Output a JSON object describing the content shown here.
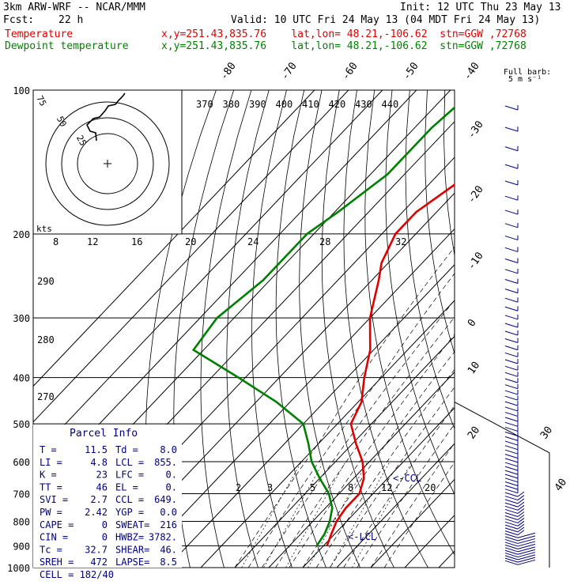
{
  "header": {
    "model": "3km ARW-WRF -- NCAR/MMM",
    "init": "Init: 12 UTC Thu 23 May 13",
    "fcst_label": "Fcst:",
    "fcst_value": "22 h",
    "valid": "Valid: 10 UTC Fri 24 May 13 (04 MDT Fri 24 May 13)",
    "temp_label": "Temperature",
    "temp_info": "x,y=251.43,835.76    lat,lon= 48.21,-106.62  stn=GGW ,72768",
    "dew_label": "Dewpoint temperature",
    "dew_info": "x,y=251.43,835.76    lat,lon= 48.21,-106.62  stn=GGW ,72768",
    "barb_note_1": "Full barb:",
    "barb_note_2": "5 m s⁻¹"
  },
  "chart_data": {
    "type": "line",
    "xlabel": "",
    "ylabel": "",
    "y_log_scale": true,
    "ylim": [
      1000,
      100
    ],
    "pressure_ticks": [
      "100",
      "200",
      "300",
      "400",
      "500",
      "600",
      "700",
      "800",
      "900",
      "1000"
    ],
    "isotherm_labels_top": [
      "-80",
      "-70",
      "-60",
      "-50",
      "-40"
    ],
    "isotherm_labels_right": [
      "-30",
      "-20",
      "-10",
      "0",
      "10",
      "20",
      "30",
      "40"
    ],
    "theta_labels": [
      "370",
      "380",
      "390",
      "400",
      "410",
      "420",
      "430",
      "440"
    ],
    "theta_labels_left": [
      "290",
      "280",
      "270"
    ],
    "mixing_ratio_labels": [
      "2",
      "3",
      "5",
      "8",
      "12",
      "20"
    ],
    "hodograph_speed_labels": [
      "8",
      "12",
      "16",
      "20",
      "24",
      "28",
      "32"
    ],
    "hodograph_ring_labels": [
      "75",
      "50",
      "25"
    ],
    "hodograph_unit": "kts",
    "annotations": [
      "<-CCL",
      "<-LCL"
    ],
    "series": [
      {
        "name": "Temperature",
        "color": "#e00000",
        "points": [
          [
            100,
            -48
          ],
          [
            120,
            -50
          ],
          [
            150,
            -51
          ],
          [
            180,
            -56
          ],
          [
            200,
            -56
          ],
          [
            230,
            -52
          ],
          [
            250,
            -48
          ],
          [
            300,
            -40
          ],
          [
            350,
            -31
          ],
          [
            400,
            -25
          ],
          [
            450,
            -19
          ],
          [
            500,
            -16
          ],
          [
            550,
            -9
          ],
          [
            600,
            -2
          ],
          [
            650,
            3
          ],
          [
            700,
            6
          ],
          [
            750,
            6
          ],
          [
            800,
            7
          ],
          [
            850,
            9
          ],
          [
            900,
            11
          ]
        ]
      },
      {
        "name": "Dewpoint temperature",
        "color": "#008000",
        "points": [
          [
            100,
            -73
          ],
          [
            120,
            -75
          ],
          [
            150,
            -75
          ],
          [
            180,
            -79
          ],
          [
            200,
            -82
          ],
          [
            250,
            -82
          ],
          [
            300,
            -85
          ],
          [
            350,
            -83
          ],
          [
            400,
            -62
          ],
          [
            450,
            -44
          ],
          [
            500,
            -30
          ],
          [
            550,
            -23
          ],
          [
            600,
            -17
          ],
          [
            650,
            -10
          ],
          [
            700,
            -3
          ],
          [
            750,
            2
          ],
          [
            800,
            5
          ],
          [
            850,
            7
          ],
          [
            900,
            8
          ]
        ]
      }
    ]
  },
  "parcel": {
    "title": "Parcel Info",
    "rows": [
      {
        "k1": "T  =",
        "v1": "11.5",
        "k2": "Td =",
        "v2": "8.0"
      },
      {
        "k1": "LI =",
        "v1": "4.8",
        "k2": "LCL =",
        "v2": "855."
      },
      {
        "k1": "K  =",
        "v1": "23",
        "k2": "LFC =",
        "v2": "0."
      },
      {
        "k1": "TT =",
        "v1": "46",
        "k2": "EL  =",
        "v2": "0."
      },
      {
        "k1": "SVI =",
        "v1": "2.7",
        "k2": "CCL =",
        "v2": "649."
      },
      {
        "k1": "PW =",
        "v1": "2.42",
        "k2": "YGP =",
        "v2": "0.0"
      },
      {
        "k1": "CAPE =",
        "v1": "0",
        "k2": "SWEAT=",
        "v2": "216"
      },
      {
        "k1": "CIN =",
        "v1": "0",
        "k2": "HWBZ=",
        "v2": "3782."
      },
      {
        "k1": "Tc =",
        "v1": "32.7",
        "k2": "SHEAR=",
        "v2": "46."
      },
      {
        "k1": "SREH =",
        "v1": "472",
        "k2": "LAPSE=",
        "v2": "8.5"
      }
    ],
    "cell": "CELL = 182/40"
  }
}
